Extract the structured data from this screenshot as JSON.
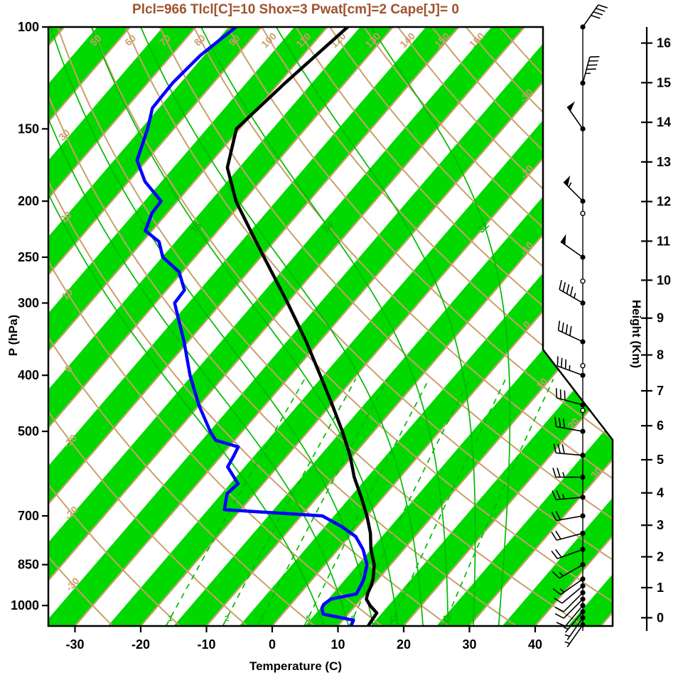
{
  "title": {
    "text": "Plcl=966 Tlcl[C]=10 Shox=3 Pwat[cm]=2 Cape[J]= 0",
    "color": "#A0522D"
  },
  "axis_labels": {
    "pressure": "P (hPa)",
    "temperature": "Temperature (C)",
    "height": "Height (Km)"
  },
  "colors": {
    "stripe_green": "#00D800",
    "line_green": "#00BA00",
    "tan": "#C8A06A",
    "temperature_line": "#000000",
    "dewpoint_line": "#0000FF",
    "frame": "#000000"
  },
  "chart_data": {
    "type": "skewt-logp-sounding",
    "pressure_ticks_hpa": [
      100,
      150,
      200,
      250,
      300,
      400,
      500,
      700,
      850,
      1000
    ],
    "temperature_ticks_c": [
      -30,
      -20,
      -10,
      0,
      10,
      20,
      30,
      40
    ],
    "height_ticks_km": [
      0,
      1,
      2,
      3,
      4,
      5,
      6,
      7,
      8,
      9,
      10,
      11,
      12,
      13,
      14,
      15,
      16
    ],
    "isotherm_labels_c": [
      -30,
      -20,
      -10,
      0,
      10,
      20,
      30
    ],
    "dry_adiabat_labels_c": [
      -30,
      -20,
      -10,
      0,
      10,
      20,
      30,
      40,
      50,
      60,
      70,
      80,
      90,
      100,
      110,
      120,
      130,
      140,
      150,
      160
    ],
    "moist_adiabat_values_c": [
      4,
      8,
      12,
      16,
      20,
      24,
      28,
      32
    ],
    "moist_adiabat_labels_c": [
      12,
      16,
      24,
      32
    ],
    "mixing_ratio_values_gkg": [
      1,
      2,
      3,
      5,
      8,
      12,
      20
    ],
    "temperature_profile": {
      "pressure_hpa": [
        1085,
        1060,
        1030,
        1000,
        975,
        950,
        925,
        900,
        850,
        800,
        750,
        700,
        650,
        600,
        550,
        500,
        450,
        400,
        350,
        300,
        250,
        225,
        200,
        175,
        150,
        125,
        100
      ],
      "temperature_c": [
        14.6,
        14.4,
        14.2,
        12.2,
        10.8,
        10.2,
        9.8,
        9.2,
        7.5,
        5.0,
        2.8,
        0.0,
        -3.3,
        -7.0,
        -10.5,
        -14.8,
        -19.8,
        -25.5,
        -32.0,
        -39.9,
        -49.5,
        -55.0,
        -61.1,
        -66.8,
        -70.5,
        -69.1,
        -66.9
      ]
    },
    "dewpoint_profile": {
      "pressure_hpa": [
        1085,
        1060,
        1035,
        1010,
        995,
        975,
        955,
        925,
        900,
        850,
        800,
        760,
        730,
        700,
        683,
        640,
        616,
        576,
        552,
        532,
        518,
        502,
        450,
        400,
        350,
        300,
        285,
        265,
        250,
        235,
        225,
        210,
        200,
        185,
        170,
        150,
        138,
        125,
        112,
        100
      ],
      "dewpoint_c": [
        12.0,
        11.6,
        6.2,
        5.2,
        5.0,
        5.4,
        8.6,
        8.2,
        7.8,
        6.4,
        3.8,
        1.0,
        -2.5,
        -6.8,
        -22.5,
        -24.2,
        -23.8,
        -27.6,
        -28.1,
        -28.6,
        -32.9,
        -34.7,
        -40.1,
        -45.3,
        -50.6,
        -57.1,
        -57.3,
        -60.5,
        -64.9,
        -67.5,
        -71.0,
        -72.3,
        -72.5,
        -77.5,
        -81.5,
        -84.0,
        -86.0,
        -86.2,
        -85.6,
        -83.9
      ]
    },
    "wind_barbs": [
      {
        "pressure_hpa": 1080,
        "speed_kt": 3,
        "direction_deg": 215
      },
      {
        "pressure_hpa": 1050,
        "speed_kt": 5,
        "direction_deg": 215
      },
      {
        "pressure_hpa": 1025,
        "speed_kt": 5,
        "direction_deg": 220
      },
      {
        "pressure_hpa": 1000,
        "speed_kt": 8,
        "direction_deg": 220
      },
      {
        "pressure_hpa": 975,
        "speed_kt": 10,
        "direction_deg": 225
      },
      {
        "pressure_hpa": 950,
        "speed_kt": 10,
        "direction_deg": 225
      },
      {
        "pressure_hpa": 925,
        "speed_kt": 12,
        "direction_deg": 230
      },
      {
        "pressure_hpa": 900,
        "speed_kt": 15,
        "direction_deg": 235
      },
      {
        "pressure_hpa": 850,
        "speed_kt": 15,
        "direction_deg": 240
      },
      {
        "pressure_hpa": 800,
        "speed_kt": 18,
        "direction_deg": 250
      },
      {
        "pressure_hpa": 750,
        "speed_kt": 20,
        "direction_deg": 255
      },
      {
        "pressure_hpa": 700,
        "speed_kt": 22,
        "direction_de g": 260
      },
      {
        "pressure_hpa": 650,
        "speed_kt": 25,
        "direction_deg": 265
      },
      {
        "pressure_hpa": 600,
        "speed_kt": 25,
        "direction_deg": 270
      },
      {
        "pressure_hpa": 550,
        "speed_kt": 28,
        "direction_deg": 275
      },
      {
        "pressure_hpa": 500,
        "speed_kt": 30,
        "direction_deg": 280
      },
      {
        "pressure_hpa": 450,
        "speed_kt": 32,
        "direction_deg": 285
      },
      {
        "pressure_hpa": 400,
        "speed_kt": 35,
        "direction_deg": 290
      },
      {
        "pressure_hpa": 350,
        "speed_kt": 40,
        "direction_deg": 295
      },
      {
        "pressure_hpa": 300,
        "speed_kt": 45,
        "direction_deg": 300
      },
      {
        "pressure_hpa": 250,
        "speed_kt": 52,
        "direction_deg": 305
      },
      {
        "pressure_hpa": 200,
        "speed_kt": 55,
        "direction_deg": 315
      },
      {
        "pressure_hpa": 150,
        "speed_kt": 50,
        "direction_deg": 325
      },
      {
        "pressure_hpa": 125,
        "speed_kt": 45,
        "direction_deg": 15
      },
      {
        "pressure_hpa": 100,
        "speed_kt": 42,
        "direction_deg": 35
      }
    ],
    "extra_level_markers_hpa": [
      460,
      385,
      275,
      210
    ]
  }
}
